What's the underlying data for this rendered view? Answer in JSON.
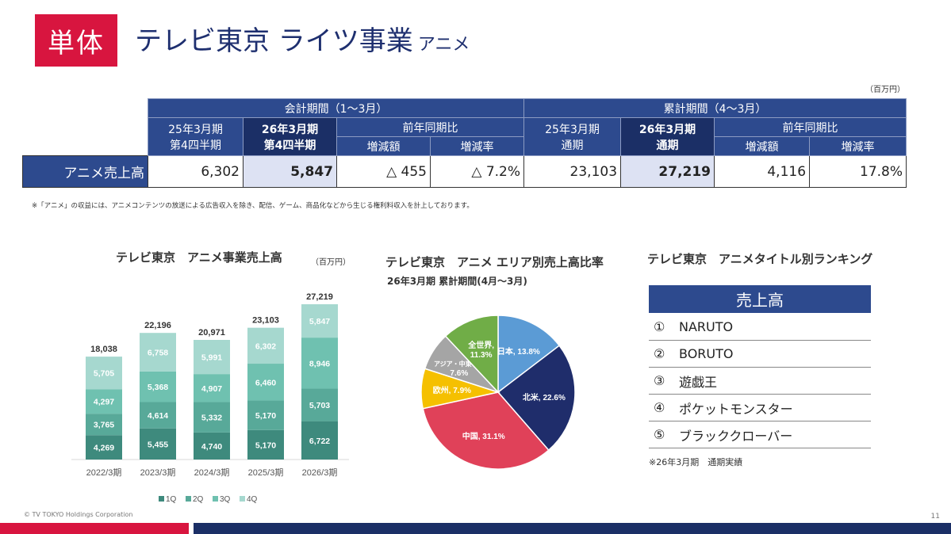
{
  "header": {
    "badge": "単体",
    "title": "テレビ東京 ライツ事業",
    "subtitle": "アニメ"
  },
  "unit_top": "（百万円）",
  "table": {
    "group1": "会計期間（1～3月）",
    "group2": "累計期間（4～3月）",
    "col_prev_q_1": "25年3月期",
    "col_prev_q_2": "第4四半期",
    "col_cur_q_1": "26年3月期",
    "col_cur_q_2": "第4四半期",
    "yoy1": "前年同期比",
    "diff1": "増減額",
    "rate1": "増減率",
    "col_prev_y_1": "25年3月期",
    "col_prev_y_2": "通期",
    "col_cur_y_1": "26年3月期",
    "col_cur_y_2": "通期",
    "yoy2": "前年同期比",
    "diff2": "増減額",
    "rate2": "増減率",
    "row_label": "アニメ売上高",
    "values": [
      "6,302",
      "5,847",
      "△ 455",
      "△ 7.2%",
      "23,103",
      "27,219",
      "4,116",
      "17.8%"
    ]
  },
  "note": "※「アニメ」の収益には、アニメコンテンツの放送による広告収入を除き、配信、ゲーム、商品化などから生じる権利料収入を計上しております。",
  "bar_chart": {
    "title": "テレビ東京　アニメ事業売上高",
    "unit": "（百万円）",
    "legend": [
      "1Q",
      "2Q",
      "3Q",
      "4Q"
    ],
    "colors": [
      "#3e8a7d",
      "#58a999",
      "#6fc1b0",
      "#a6d8cf"
    ]
  },
  "pie_chart": {
    "title": "テレビ東京　アニメ エリア別売上高比率",
    "subtitle": "26年3月期 累計期間(4月～3月)"
  },
  "ranking": {
    "title": "テレビ東京　アニメタイトル別ランキング",
    "header": "売上高",
    "items": [
      {
        "n": "①",
        "name": "NARUTO"
      },
      {
        "n": "②",
        "name": "BORUTO"
      },
      {
        "n": "③",
        "name": "遊戯王"
      },
      {
        "n": "④",
        "name": "ポケットモンスター"
      },
      {
        "n": "⑤",
        "name": "ブラッククローバー"
      }
    ],
    "note": "※26年3月期　通期実績"
  },
  "footer": {
    "copyright": "© TV TOKYO Holdings Corporation",
    "page": "11"
  },
  "chart_data": [
    {
      "type": "bar",
      "stacked": true,
      "categories": [
        "2022/3期",
        "2023/3期",
        "2024/3期",
        "2025/3期",
        "2026/3期"
      ],
      "series": [
        {
          "name": "1Q",
          "values": [
            4269,
            5455,
            4740,
            5170,
            6722
          ]
        },
        {
          "name": "2Q",
          "values": [
            3765,
            4614,
            5332,
            5170,
            5703
          ]
        },
        {
          "name": "3Q",
          "values": [
            4297,
            5368,
            4907,
            6460,
            8946
          ]
        },
        {
          "name": "4Q",
          "values": [
            5705,
            6758,
            5991,
            6302,
            5847
          ]
        }
      ],
      "labels": [
        [
          "4,269",
          "5,455",
          "4,740",
          "5,170",
          "6,722"
        ],
        [
          "3,765",
          "4,614",
          "5,332",
          "5,170",
          "5,703"
        ],
        [
          "4,297",
          "5,368",
          "4,907",
          "6,460",
          "8,946"
        ],
        [
          "5,705",
          "6,758",
          "5,991",
          "6,302",
          "5,847"
        ]
      ],
      "totals": [
        "18,038",
        "22,196",
        "20,971",
        "23,103",
        "27,219"
      ],
      "total_values": [
        18038,
        22196,
        20971,
        23103,
        27219
      ],
      "legend_position": "bottom",
      "grid": false
    },
    {
      "type": "pie",
      "slices": [
        {
          "name": "日本",
          "value": 13.8,
          "label": "日本, 13.8%",
          "color": "#5b9bd5"
        },
        {
          "name": "北米",
          "value": 22.6,
          "label": "北米, 22.6%",
          "color": "#1f2d6b"
        },
        {
          "name": "中国",
          "value": 31.1,
          "label": "中国, 31.1%",
          "color": "#e04159"
        },
        {
          "name": "欧州",
          "value": 7.9,
          "label": "欧州, 7.9%",
          "color": "#f5c000"
        },
        {
          "name": "アジア・中東など",
          "value": 7.6,
          "label_line1": "アジア・中東など",
          "label_line2": "7.6%",
          "color": "#a5a5a5"
        },
        {
          "name": "全世界",
          "value": 11.3,
          "label_line1": "全世界,",
          "label_line2": "11.3%",
          "color": "#70ad47"
        }
      ]
    }
  ]
}
